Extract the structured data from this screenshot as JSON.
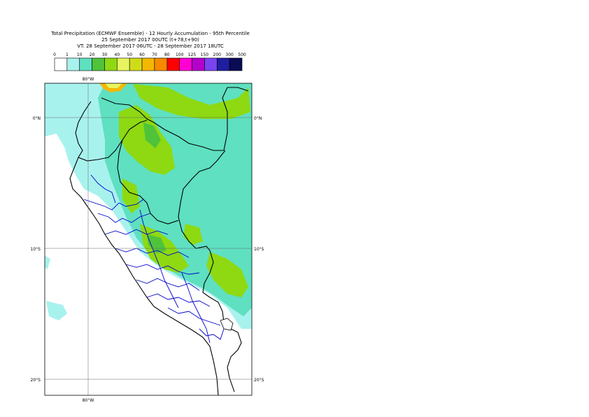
{
  "title": {
    "line1": "Total Precipitation (ECMWF Ensemble) - 12 Hourly Accumulation - 95th Percentile",
    "line2": "25 September 2017 00UTC (t+78,t+90)",
    "line3": "VT: 28 September 2017 06UTC - 28 September 2017 18UTC"
  },
  "legend": {
    "ticks": [
      "0",
      "1",
      "10",
      "20",
      "30",
      "40",
      "50",
      "60",
      "70",
      "80",
      "100",
      "125",
      "150",
      "200",
      "300",
      "500"
    ],
    "colors": [
      "#ffffff",
      "#a8f2ee",
      "#5fe0c0",
      "#4fc33a",
      "#8ed911",
      "#e6f560",
      "#cfdc18",
      "#f4b800",
      "#f88a00",
      "#ff0000",
      "#ff00d4",
      "#b400c9",
      "#7a44f0",
      "#1e1ea0",
      "#0a0a55"
    ]
  },
  "axes": {
    "lon_top": "80°W",
    "lon_bottom": "80°W",
    "lat_left": [
      "0°N",
      "10°S",
      "20°S"
    ],
    "lat_right": [
      "0°N",
      "10°S",
      "20°S"
    ]
  },
  "colors": {
    "sea_light": "#a8f2ee",
    "mid": "#5fe0c0",
    "green": "#8ed911",
    "dark_green": "#4fc33a",
    "country_border": "#000000",
    "region_border": "#0000cc"
  }
}
